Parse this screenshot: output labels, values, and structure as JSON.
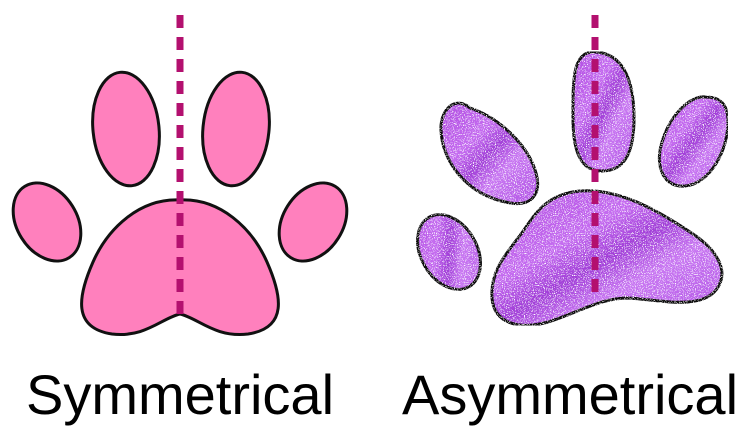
{
  "labels": {
    "left": "Symmetrical",
    "right": "Asymmetrical"
  },
  "colors": {
    "symmetric_fill": "#ff80bd",
    "asymmetric_fill": "#b84ee6",
    "asymmetric_highlight": "#e6b8ff",
    "outline": "#111111",
    "axis_line": "#b3106f",
    "background": "#ffffff"
  }
}
